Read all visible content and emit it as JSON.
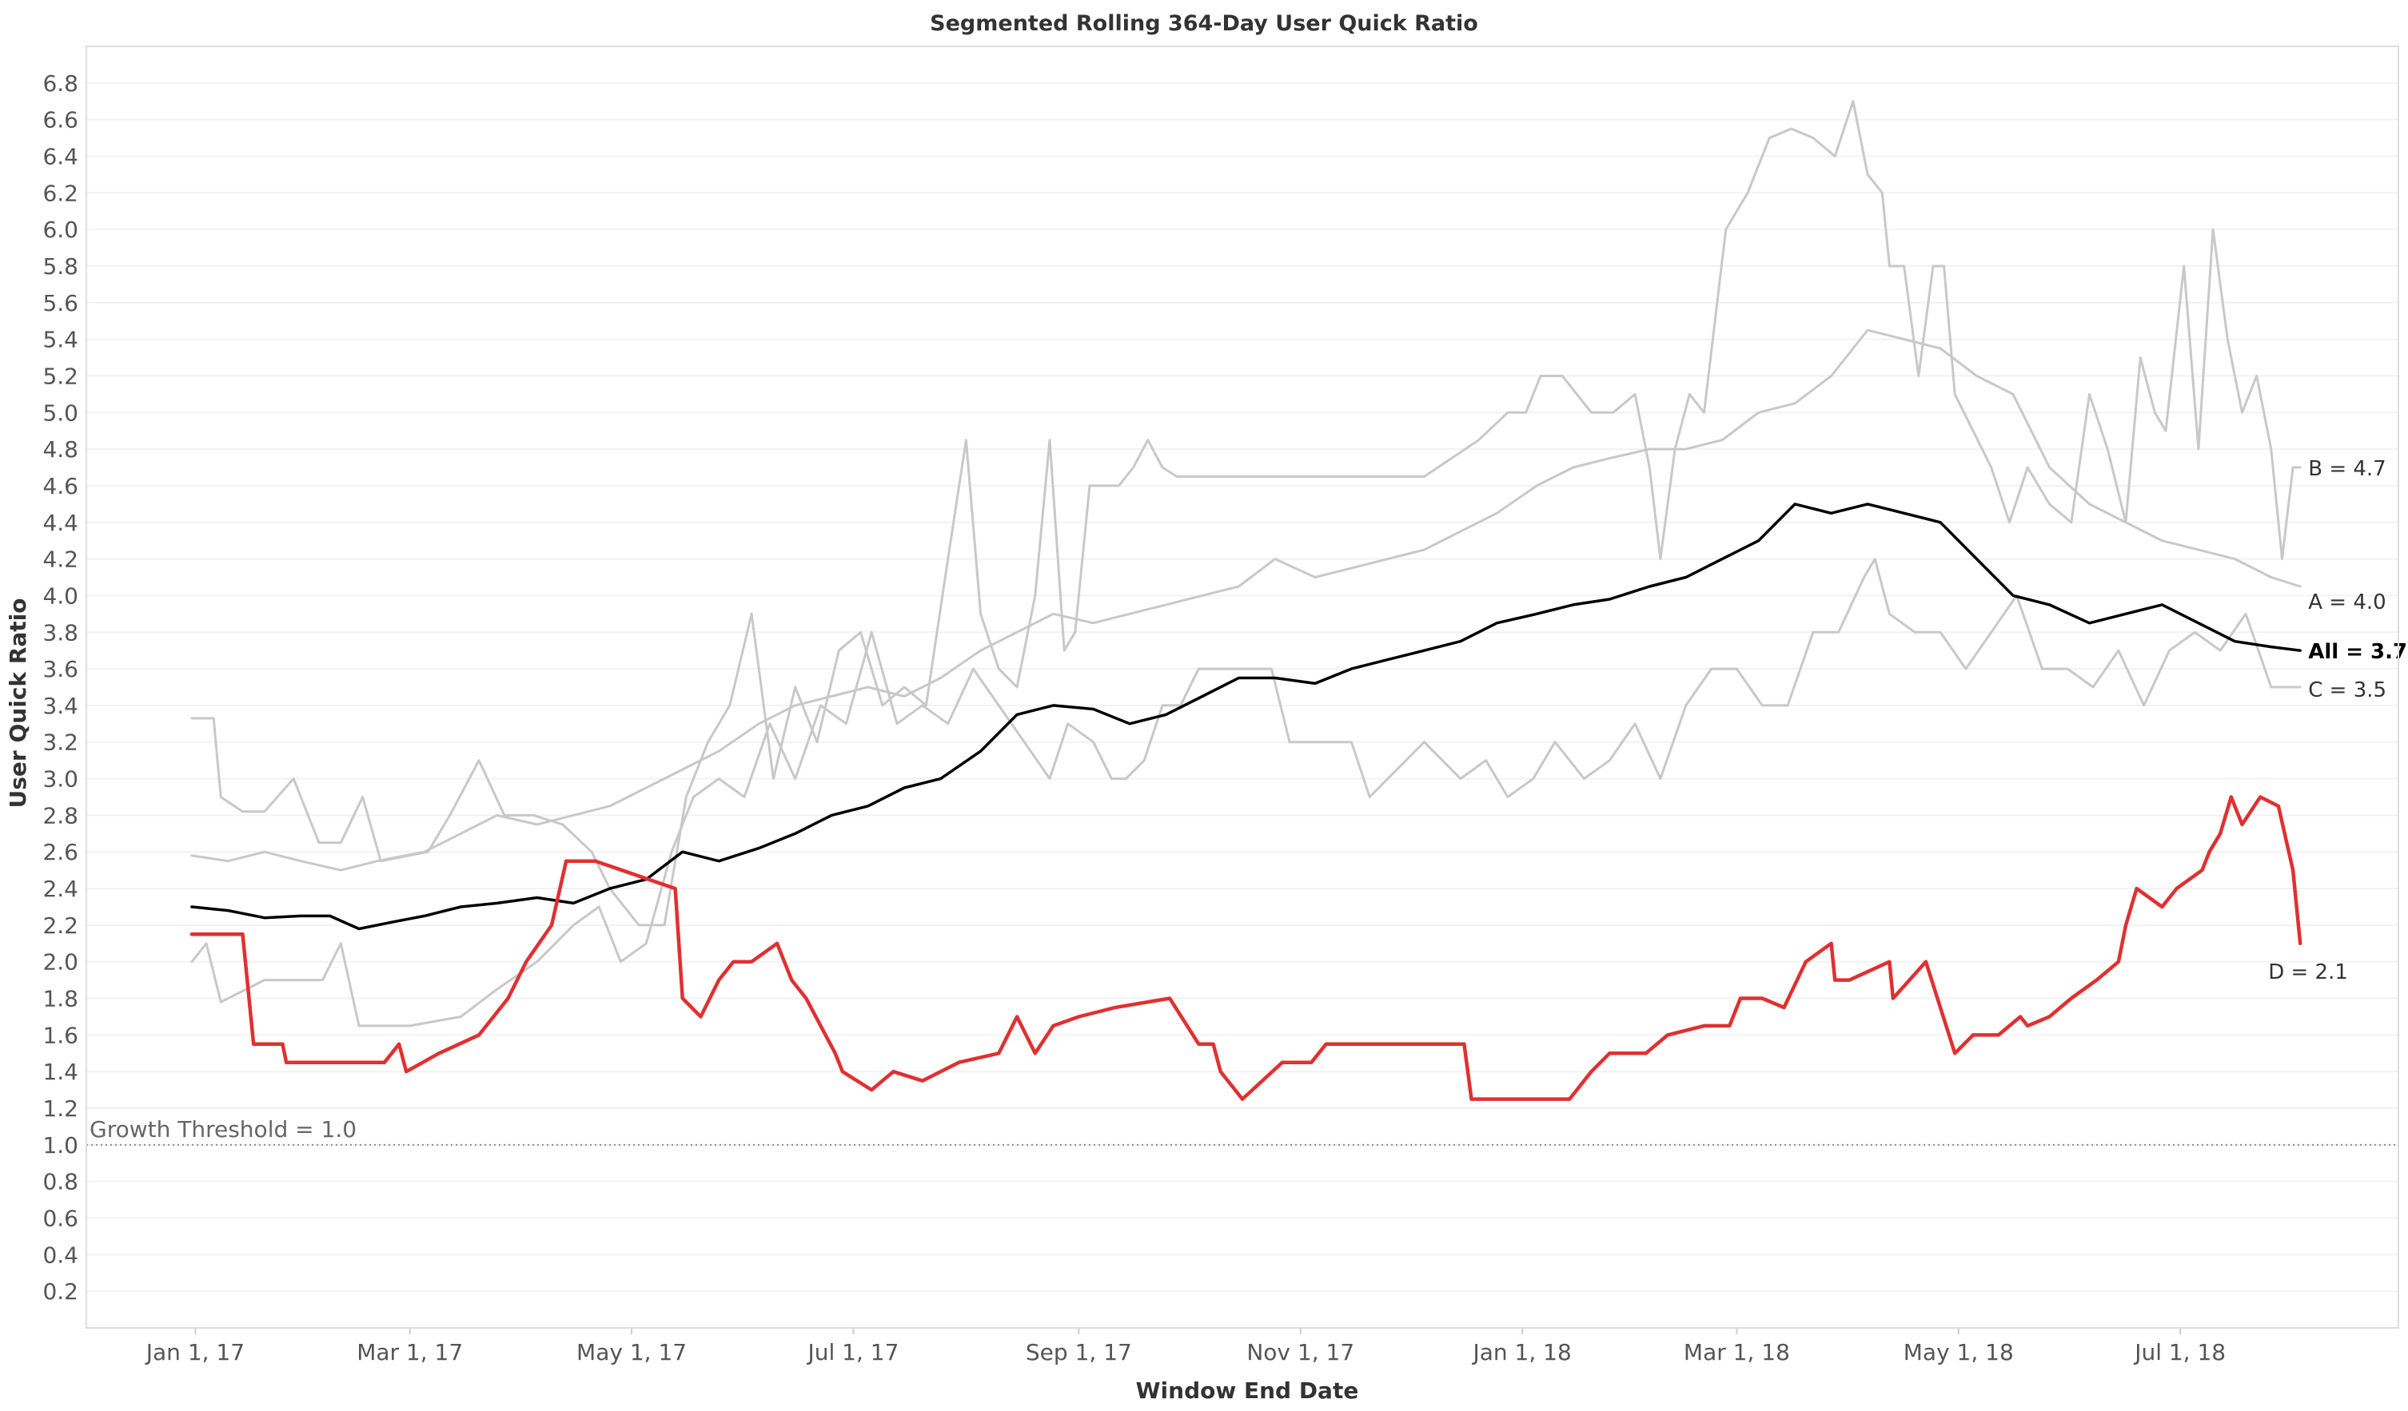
{
  "chart_data": {
    "type": "line",
    "title": "Segmented Rolling 364-Day User Quick Ratio",
    "xlabel": "Window End Date",
    "ylabel": "User Quick Ratio",
    "x_ticks": [
      "Jan 1, 17",
      "Mar 1, 17",
      "May 1, 17",
      "Jul 1, 17",
      "Sep 1, 17",
      "Nov 1, 17",
      "Jan 1, 18",
      "Mar 1, 18",
      "May 1, 18",
      "Jul 1, 18"
    ],
    "x_tick_dates": [
      "2017-01-01",
      "2017-03-01",
      "2017-05-01",
      "2017-07-01",
      "2017-09-01",
      "2017-11-01",
      "2018-01-01",
      "2018-03-01",
      "2018-05-01",
      "2018-07-01"
    ],
    "xlim": [
      "2016-12-02",
      "2018-08-30"
    ],
    "y_ticks": [
      "0.2",
      "0.4",
      "0.6",
      "0.8",
      "1.0",
      "1.2",
      "1.4",
      "1.6",
      "1.8",
      "2.0",
      "2.2",
      "2.4",
      "2.6",
      "2.8",
      "3.0",
      "3.2",
      "3.4",
      "3.6",
      "3.8",
      "4.0",
      "4.2",
      "4.4",
      "4.6",
      "4.8",
      "5.0",
      "5.2",
      "5.4",
      "5.6",
      "5.8",
      "6.0",
      "6.2",
      "6.4",
      "6.6",
      "6.8"
    ],
    "ylim": [
      0,
      7.0
    ],
    "grid": true,
    "reference_line": {
      "value": 1.0,
      "label": "Growth Threshold = 1.0"
    },
    "series": [
      {
        "name": "B",
        "end_label": "B = 4.7",
        "color": "#c8c8c8",
        "emphasis": false,
        "x": [
          "2016-12-31",
          "2017-01-06",
          "2017-01-08",
          "2017-01-14",
          "2017-01-20",
          "2017-01-28",
          "2017-02-04",
          "2017-02-10",
          "2017-02-16",
          "2017-02-21",
          "2017-03-06",
          "2017-03-12",
          "2017-03-20",
          "2017-03-27",
          "2017-04-04",
          "2017-04-12",
          "2017-04-20",
          "2017-04-25",
          "2017-05-03",
          "2017-05-10",
          "2017-05-16",
          "2017-05-22",
          "2017-05-28",
          "2017-06-03",
          "2017-06-09",
          "2017-06-15",
          "2017-06-21",
          "2017-06-27",
          "2017-07-03",
          "2017-07-09",
          "2017-07-15",
          "2017-07-21",
          "2017-07-27",
          "2017-08-01",
          "2017-08-05",
          "2017-08-10",
          "2017-08-15",
          "2017-08-20",
          "2017-08-24",
          "2017-08-28",
          "2017-08-31",
          "2017-09-04",
          "2017-09-08",
          "2017-09-12",
          "2017-09-16",
          "2017-09-20",
          "2017-09-24",
          "2017-09-28",
          "2017-10-02",
          "2017-10-06",
          "2017-10-10",
          "2017-10-14",
          "2017-10-20",
          "2017-10-26",
          "2017-11-05",
          "2017-11-20",
          "2017-12-05",
          "2017-12-20",
          "2017-12-28",
          "2018-01-02",
          "2018-01-06",
          "2018-01-12",
          "2018-01-20",
          "2018-01-26",
          "2018-02-01",
          "2018-02-05",
          "2018-02-08",
          "2018-02-12",
          "2018-02-16",
          "2018-02-20",
          "2018-02-26",
          "2018-03-04",
          "2018-03-10",
          "2018-03-16",
          "2018-03-22",
          "2018-03-28",
          "2018-04-02",
          "2018-04-06",
          "2018-04-10",
          "2018-04-12",
          "2018-04-16",
          "2018-04-20",
          "2018-04-24",
          "2018-04-27",
          "2018-04-30",
          "2018-05-05",
          "2018-05-10",
          "2018-05-15",
          "2018-05-20",
          "2018-05-26",
          "2018-06-01",
          "2018-06-06",
          "2018-06-11",
          "2018-06-16",
          "2018-06-20",
          "2018-06-24",
          "2018-06-27",
          "2018-07-02",
          "2018-07-06",
          "2018-07-10",
          "2018-07-14",
          "2018-07-18",
          "2018-07-22",
          "2018-07-26",
          "2018-07-29",
          "2018-08-01",
          "2018-08-03"
        ],
        "values": [
          3.33,
          3.33,
          2.9,
          2.82,
          2.82,
          3.0,
          2.65,
          2.65,
          2.9,
          2.55,
          2.6,
          2.8,
          3.1,
          2.8,
          2.8,
          2.75,
          2.6,
          2.4,
          2.2,
          2.2,
          2.9,
          3.2,
          3.4,
          3.9,
          3.0,
          3.5,
          3.2,
          3.7,
          3.8,
          3.4,
          3.5,
          3.4,
          4.2,
          4.85,
          3.9,
          3.6,
          3.5,
          4.0,
          4.85,
          3.7,
          3.8,
          4.6,
          4.6,
          4.6,
          4.7,
          4.85,
          4.7,
          4.65,
          4.65,
          4.65,
          4.65,
          4.65,
          4.65,
          4.65,
          4.65,
          4.65,
          4.65,
          4.85,
          5.0,
          5.0,
          5.2,
          5.2,
          5.0,
          5.0,
          5.1,
          4.7,
          4.2,
          4.8,
          5.1,
          5.0,
          6.0,
          6.2,
          6.5,
          6.55,
          6.5,
          6.4,
          6.7,
          6.3,
          6.2,
          5.8,
          5.8,
          5.2,
          5.8,
          5.8,
          5.1,
          4.9,
          4.7,
          4.4,
          4.7,
          4.5,
          4.4,
          5.1,
          4.8,
          4.4,
          5.3,
          5.0,
          4.9,
          5.8,
          4.8,
          6.0,
          5.4,
          5.0,
          5.2,
          4.8,
          4.2,
          4.7,
          4.7
        ]
      },
      {
        "name": "A",
        "end_label": "A = 4.0",
        "color": "#c8c8c8",
        "emphasis": false,
        "x": [
          "2016-12-31",
          "2017-01-10",
          "2017-01-20",
          "2017-01-30",
          "2017-02-10",
          "2017-02-20",
          "2017-03-05",
          "2017-03-15",
          "2017-03-25",
          "2017-04-05",
          "2017-04-15",
          "2017-04-25",
          "2017-05-05",
          "2017-05-15",
          "2017-05-25",
          "2017-06-05",
          "2017-06-15",
          "2017-06-25",
          "2017-07-05",
          "2017-07-15",
          "2017-07-25",
          "2017-08-05",
          "2017-08-15",
          "2017-08-25",
          "2017-09-05",
          "2017-09-15",
          "2017-09-25",
          "2017-10-05",
          "2017-10-15",
          "2017-10-25",
          "2017-11-05",
          "2017-11-15",
          "2017-11-25",
          "2017-12-05",
          "2017-12-15",
          "2017-12-25",
          "2018-01-05",
          "2018-01-15",
          "2018-01-25",
          "2018-02-05",
          "2018-02-15",
          "2018-02-25",
          "2018-03-07",
          "2018-03-17",
          "2018-03-27",
          "2018-04-06",
          "2018-04-16",
          "2018-04-26",
          "2018-05-06",
          "2018-05-16",
          "2018-05-26",
          "2018-06-06",
          "2018-06-16",
          "2018-06-26",
          "2018-07-06",
          "2018-07-16",
          "2018-07-26",
          "2018-08-03"
        ],
        "values": [
          2.58,
          2.55,
          2.6,
          2.55,
          2.5,
          2.55,
          2.6,
          2.7,
          2.8,
          2.75,
          2.8,
          2.85,
          2.95,
          3.05,
          3.15,
          3.3,
          3.4,
          3.45,
          3.5,
          3.45,
          3.55,
          3.7,
          3.8,
          3.9,
          3.85,
          3.9,
          3.95,
          4.0,
          4.05,
          4.2,
          4.1,
          4.15,
          4.2,
          4.25,
          4.35,
          4.45,
          4.6,
          4.7,
          4.75,
          4.8,
          4.8,
          4.85,
          5.0,
          5.05,
          5.2,
          5.45,
          5.4,
          5.35,
          5.2,
          5.1,
          4.7,
          4.5,
          4.4,
          4.3,
          4.25,
          4.2,
          4.1,
          4.05
        ]
      },
      {
        "name": "C",
        "end_label": "C = 3.5",
        "color": "#c8c8c8",
        "emphasis": false,
        "x": [
          "2016-12-31",
          "2017-01-04",
          "2017-01-08",
          "2017-01-20",
          "2017-02-05",
          "2017-02-10",
          "2017-02-15",
          "2017-03-01",
          "2017-03-15",
          "2017-03-25",
          "2017-04-05",
          "2017-04-15",
          "2017-04-22",
          "2017-04-28",
          "2017-05-05",
          "2017-05-12",
          "2017-05-18",
          "2017-05-25",
          "2017-06-01",
          "2017-06-08",
          "2017-06-15",
          "2017-06-22",
          "2017-06-29",
          "2017-07-06",
          "2017-07-13",
          "2017-07-20",
          "2017-07-27",
          "2017-08-03",
          "2017-08-10",
          "2017-08-17",
          "2017-08-24",
          "2017-08-29",
          "2017-09-05",
          "2017-09-10",
          "2017-09-14",
          "2017-09-19",
          "2017-09-24",
          "2017-09-29",
          "2017-10-04",
          "2017-10-09",
          "2017-10-14",
          "2017-10-19",
          "2017-10-24",
          "2017-10-29",
          "2017-11-03",
          "2017-11-10",
          "2017-11-15",
          "2017-11-20",
          "2017-12-05",
          "2017-12-15",
          "2017-12-22",
          "2017-12-28",
          "2018-01-04",
          "2018-01-10",
          "2018-01-18",
          "2018-01-25",
          "2018-02-01",
          "2018-02-08",
          "2018-02-15",
          "2018-02-22",
          "2018-03-01",
          "2018-03-08",
          "2018-03-15",
          "2018-03-22",
          "2018-03-29",
          "2018-04-05",
          "2018-04-08",
          "2018-04-12",
          "2018-04-19",
          "2018-04-26",
          "2018-05-03",
          "2018-05-10",
          "2018-05-17",
          "2018-05-24",
          "2018-05-31",
          "2018-06-07",
          "2018-06-14",
          "2018-06-21",
          "2018-06-28",
          "2018-07-05",
          "2018-07-12",
          "2018-07-19",
          "2018-07-26",
          "2018-08-03"
        ],
        "values": [
          2.0,
          2.1,
          1.78,
          1.9,
          1.9,
          2.1,
          1.65,
          1.65,
          1.7,
          1.85,
          2.0,
          2.2,
          2.3,
          2.0,
          2.1,
          2.6,
          2.9,
          3.0,
          2.9,
          3.3,
          3.0,
          3.4,
          3.3,
          3.8,
          3.3,
          3.4,
          3.3,
          3.6,
          3.4,
          3.2,
          3.0,
          3.3,
          3.2,
          3.0,
          3.0,
          3.1,
          3.4,
          3.4,
          3.6,
          3.6,
          3.6,
          3.6,
          3.6,
          3.2,
          3.2,
          3.2,
          3.2,
          2.9,
          3.2,
          3.0,
          3.1,
          2.9,
          3.0,
          3.2,
          3.0,
          3.1,
          3.3,
          3.0,
          3.4,
          3.6,
          3.6,
          3.4,
          3.4,
          3.8,
          3.8,
          4.1,
          4.2,
          3.9,
          3.8,
          3.8,
          3.6,
          3.8,
          4.0,
          3.6,
          3.6,
          3.5,
          3.7,
          3.4,
          3.7,
          3.8,
          3.7,
          3.9,
          3.5,
          3.5
        ]
      },
      {
        "name": "All",
        "end_label": "All = 3.7",
        "color": "#000000",
        "emphasis": true,
        "x": [
          "2016-12-31",
          "2017-01-10",
          "2017-01-20",
          "2017-01-30",
          "2017-02-07",
          "2017-02-15",
          "2017-02-25",
          "2017-03-05",
          "2017-03-15",
          "2017-03-25",
          "2017-04-05",
          "2017-04-15",
          "2017-04-25",
          "2017-05-05",
          "2017-05-15",
          "2017-05-25",
          "2017-06-05",
          "2017-06-15",
          "2017-06-25",
          "2017-07-05",
          "2017-07-15",
          "2017-07-25",
          "2017-08-05",
          "2017-08-15",
          "2017-08-25",
          "2017-09-05",
          "2017-09-15",
          "2017-09-25",
          "2017-10-05",
          "2017-10-15",
          "2017-10-25",
          "2017-11-05",
          "2017-11-15",
          "2017-11-25",
          "2017-12-05",
          "2017-12-15",
          "2017-12-25",
          "2018-01-05",
          "2018-01-15",
          "2018-01-25",
          "2018-02-05",
          "2018-02-15",
          "2018-02-25",
          "2018-03-07",
          "2018-03-17",
          "2018-03-27",
          "2018-04-06",
          "2018-04-16",
          "2018-04-26",
          "2018-05-06",
          "2018-05-16",
          "2018-05-26",
          "2018-06-06",
          "2018-06-16",
          "2018-06-26",
          "2018-07-06",
          "2018-07-16",
          "2018-07-26",
          "2018-08-03"
        ],
        "values": [
          2.3,
          2.28,
          2.24,
          2.25,
          2.25,
          2.18,
          2.22,
          2.25,
          2.3,
          2.32,
          2.35,
          2.32,
          2.4,
          2.45,
          2.6,
          2.55,
          2.62,
          2.7,
          2.8,
          2.85,
          2.95,
          3.0,
          3.15,
          3.35,
          3.4,
          3.38,
          3.3,
          3.35,
          3.45,
          3.55,
          3.55,
          3.52,
          3.6,
          3.65,
          3.7,
          3.75,
          3.85,
          3.9,
          3.95,
          3.98,
          4.05,
          4.1,
          4.2,
          4.3,
          4.5,
          4.45,
          4.5,
          4.45,
          4.4,
          4.2,
          4.0,
          3.95,
          3.85,
          3.9,
          3.95,
          3.85,
          3.75,
          3.72,
          3.7
        ]
      },
      {
        "name": "D",
        "end_label": "D = 2.1",
        "color": "#e03030",
        "emphasis": true,
        "x": [
          "2016-12-31",
          "2017-01-14",
          "2017-01-17",
          "2017-01-25",
          "2017-01-26",
          "2017-02-22",
          "2017-02-26",
          "2017-02-28",
          "2017-03-09",
          "2017-03-20",
          "2017-03-28",
          "2017-04-02",
          "2017-04-09",
          "2017-04-13",
          "2017-04-20",
          "2017-04-21",
          "2017-05-13",
          "2017-05-15",
          "2017-05-20",
          "2017-05-25",
          "2017-05-29",
          "2017-06-03",
          "2017-06-10",
          "2017-06-14",
          "2017-06-18",
          "2017-06-26",
          "2017-06-28",
          "2017-07-06",
          "2017-07-12",
          "2017-07-20",
          "2017-07-30",
          "2017-08-10",
          "2017-08-15",
          "2017-08-20",
          "2017-08-25",
          "2017-09-01",
          "2017-09-11",
          "2017-09-26",
          "2017-10-04",
          "2017-10-08",
          "2017-10-10",
          "2017-10-14",
          "2017-10-16",
          "2017-10-27",
          "2017-11-04",
          "2017-11-08",
          "2017-12-16",
          "2017-12-18",
          "2018-01-14",
          "2018-01-18",
          "2018-01-20",
          "2018-01-25",
          "2018-02-04",
          "2018-02-10",
          "2018-02-20",
          "2018-02-27",
          "2018-03-02",
          "2018-03-08",
          "2018-03-14",
          "2018-03-20",
          "2018-03-27",
          "2018-03-28",
          "2018-04-01",
          "2018-04-12",
          "2018-04-13",
          "2018-04-22",
          "2018-04-30",
          "2018-05-05",
          "2018-05-12",
          "2018-05-18",
          "2018-05-20",
          "2018-05-26",
          "2018-06-01",
          "2018-06-08",
          "2018-06-14",
          "2018-06-16",
          "2018-06-19",
          "2018-06-26",
          "2018-06-30",
          "2018-07-07",
          "2018-07-09",
          "2018-07-12",
          "2018-07-15",
          "2018-07-18",
          "2018-07-23",
          "2018-07-28",
          "2018-08-01",
          "2018-08-03"
        ],
        "values": [
          2.15,
          2.15,
          1.55,
          1.55,
          1.45,
          1.45,
          1.55,
          1.4,
          1.5,
          1.6,
          1.8,
          2.0,
          2.2,
          2.55,
          2.55,
          2.55,
          2.4,
          1.8,
          1.7,
          1.9,
          2.0,
          2.0,
          2.1,
          1.9,
          1.8,
          1.5,
          1.4,
          1.3,
          1.4,
          1.35,
          1.45,
          1.5,
          1.7,
          1.5,
          1.65,
          1.7,
          1.75,
          1.8,
          1.55,
          1.55,
          1.4,
          1.3,
          1.25,
          1.45,
          1.45,
          1.55,
          1.55,
          1.25,
          1.25,
          1.35,
          1.4,
          1.5,
          1.5,
          1.6,
          1.65,
          1.65,
          1.8,
          1.8,
          1.75,
          2.0,
          2.1,
          1.9,
          1.9,
          2.0,
          1.8,
          2.0,
          1.5,
          1.6,
          1.6,
          1.7,
          1.65,
          1.7,
          1.8,
          1.9,
          2.0,
          2.2,
          2.4,
          2.3,
          2.4,
          2.5,
          2.6,
          2.7,
          2.9,
          2.75,
          2.9,
          2.85,
          2.5,
          2.1
        ]
      }
    ]
  }
}
